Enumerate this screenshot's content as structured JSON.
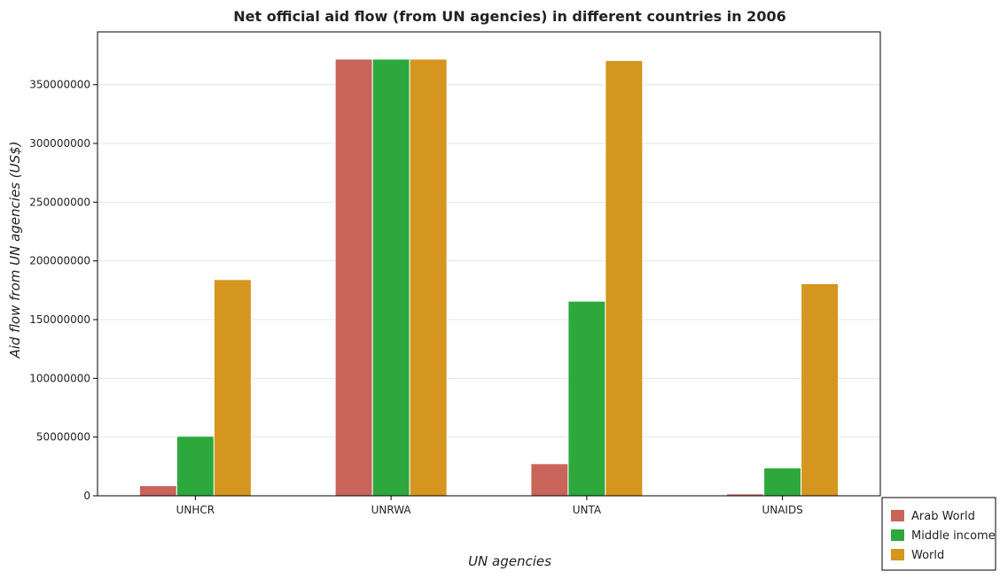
{
  "chart_data": {
    "type": "bar",
    "title": "Net official aid flow (from UN agencies) in different countries in 2006",
    "xlabel": "UN agencies",
    "ylabel": "Aid flow from UN agencies (US$)",
    "categories": [
      "UNHCR",
      "UNRWA",
      "UNTA",
      "UNAIDS"
    ],
    "series": [
      {
        "name": "Arab World",
        "color": "#c8645a",
        "values": [
          8600000,
          371800000,
          27300000,
          1600000
        ]
      },
      {
        "name": "Middle income",
        "color": "#2ca83c",
        "values": [
          50700000,
          371800000,
          165700000,
          23700000
        ]
      },
      {
        "name": "World",
        "color": "#d4961e",
        "values": [
          184100000,
          371800000,
          370600000,
          180600000
        ]
      }
    ],
    "yticks": [
      0,
      50000000,
      100000000,
      150000000,
      200000000,
      250000000,
      300000000,
      350000000
    ],
    "ytick_labels": [
      "0",
      "50000000",
      "100000000",
      "150000000",
      "200000000",
      "250000000",
      "300000000",
      "350000000"
    ],
    "ylim": [
      0,
      395000000
    ],
    "grid": true,
    "legend_position": "bottom-right"
  }
}
